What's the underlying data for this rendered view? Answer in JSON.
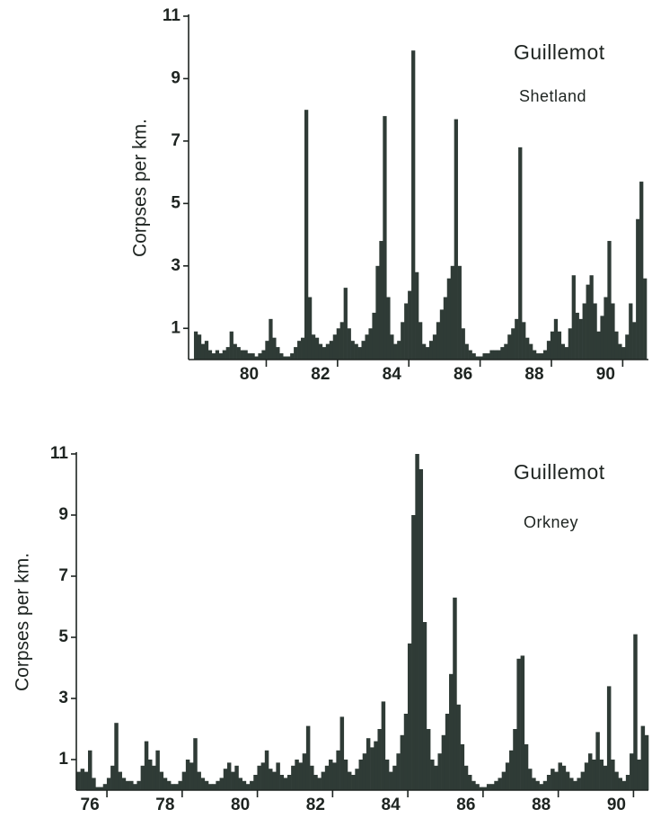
{
  "chart_data": [
    {
      "type": "bar",
      "title": "Guillemot",
      "subtitle": "Shetland",
      "y_label": "Corpses per km.",
      "color": "#2f3b36",
      "xlim": [
        78.3,
        91.2
      ],
      "ylim": [
        0,
        11
      ],
      "xticks": [
        80,
        82,
        84,
        86,
        88,
        90
      ],
      "yticks": [
        1,
        3,
        5,
        7,
        9,
        11
      ],
      "x": [
        78.5,
        78.6,
        78.7,
        78.8,
        78.9,
        79.0,
        79.1,
        79.2,
        79.3,
        79.4,
        79.5,
        79.6,
        79.7,
        79.8,
        79.9,
        80.0,
        80.1,
        80.2,
        80.3,
        80.4,
        80.5,
        80.6,
        80.7,
        80.8,
        80.9,
        81.0,
        81.1,
        81.2,
        81.3,
        81.4,
        81.5,
        81.6,
        81.7,
        81.8,
        81.9,
        82.0,
        82.1,
        82.2,
        82.3,
        82.4,
        82.5,
        82.6,
        82.7,
        82.8,
        82.9,
        83.0,
        83.1,
        83.2,
        83.3,
        83.4,
        83.5,
        83.6,
        83.7,
        83.8,
        83.9,
        84.0,
        84.1,
        84.2,
        84.3,
        84.4,
        84.5,
        84.6,
        84.7,
        84.8,
        84.9,
        85.0,
        85.1,
        85.2,
        85.3,
        85.4,
        85.5,
        85.6,
        85.7,
        85.8,
        85.9,
        86.0,
        86.1,
        86.2,
        86.3,
        86.4,
        86.5,
        86.6,
        86.7,
        86.8,
        86.9,
        87.0,
        87.1,
        87.2,
        87.3,
        87.4,
        87.5,
        87.6,
        87.7,
        87.8,
        87.9,
        88.0,
        88.1,
        88.2,
        88.3,
        88.4,
        88.5,
        88.6,
        88.7,
        88.8,
        88.9,
        89.0,
        89.1,
        89.2,
        89.3,
        89.4,
        89.5,
        89.6,
        89.7,
        89.8,
        89.9,
        90.0,
        90.1,
        90.2,
        90.3,
        90.4,
        90.5,
        90.6,
        90.7,
        90.8,
        90.9,
        91.0,
        91.1
      ],
      "values": [
        0.9,
        0.8,
        0.5,
        0.6,
        0.3,
        0.2,
        0.3,
        0.2,
        0.3,
        0.4,
        0.9,
        0.5,
        0.4,
        0.3,
        0.3,
        0.2,
        0.2,
        0.1,
        0.2,
        0.3,
        0.6,
        1.3,
        0.7,
        0.4,
        0.2,
        0.1,
        0.1,
        0.2,
        0.4,
        0.6,
        0.7,
        8.0,
        2.0,
        0.8,
        0.7,
        0.5,
        0.4,
        0.5,
        0.6,
        0.8,
        1.0,
        1.2,
        2.3,
        1.0,
        0.6,
        0.5,
        0.4,
        0.6,
        0.8,
        1.0,
        1.5,
        3.0,
        3.8,
        7.8,
        2.0,
        0.8,
        0.5,
        0.6,
        1.2,
        1.8,
        2.2,
        9.9,
        2.8,
        1.2,
        0.5,
        0.4,
        0.6,
        0.8,
        1.2,
        1.6,
        2.0,
        2.6,
        3.0,
        7.7,
        3.0,
        1.0,
        0.5,
        0.3,
        0.2,
        0.1,
        0.1,
        0.2,
        0.2,
        0.3,
        0.3,
        0.3,
        0.4,
        0.5,
        0.8,
        1.0,
        1.3,
        6.8,
        1.2,
        0.7,
        0.5,
        0.3,
        0.2,
        0.2,
        0.3,
        0.6,
        0.9,
        1.3,
        0.9,
        0.5,
        0.4,
        1.0,
        2.7,
        1.5,
        1.3,
        1.8,
        2.4,
        2.7,
        1.8,
        0.9,
        1.4,
        2.0,
        3.8,
        1.8,
        0.9,
        0.5,
        0.4,
        0.8,
        1.8,
        1.2,
        4.5,
        5.7,
        2.6
      ]
    },
    {
      "type": "bar",
      "title": "Guillemot",
      "subtitle": "Orkney",
      "y_label": "Corpses per km.",
      "color": "#2f3b36",
      "xlim": [
        75.64,
        90.85
      ],
      "ylim": [
        0,
        11
      ],
      "xticks": [
        76,
        78,
        80,
        82,
        84,
        86,
        88,
        90
      ],
      "yticks": [
        1,
        3,
        5,
        7,
        9,
        11
      ],
      "x": [
        75.7,
        75.8,
        75.9,
        76.0,
        76.1,
        76.2,
        76.3,
        76.4,
        76.5,
        76.6,
        76.7,
        76.8,
        76.9,
        77.0,
        77.1,
        77.2,
        77.3,
        77.4,
        77.5,
        77.6,
        77.7,
        77.8,
        77.9,
        78.0,
        78.1,
        78.2,
        78.3,
        78.4,
        78.5,
        78.6,
        78.7,
        78.8,
        78.9,
        79.0,
        79.1,
        79.2,
        79.3,
        79.4,
        79.5,
        79.6,
        79.7,
        79.8,
        79.9,
        80.0,
        80.1,
        80.2,
        80.3,
        80.4,
        80.5,
        80.6,
        80.7,
        80.8,
        80.9,
        81.0,
        81.1,
        81.2,
        81.3,
        81.4,
        81.5,
        81.6,
        81.7,
        81.8,
        81.9,
        82.0,
        82.1,
        82.2,
        82.3,
        82.4,
        82.5,
        82.6,
        82.7,
        82.8,
        82.9,
        83.0,
        83.1,
        83.2,
        83.3,
        83.4,
        83.5,
        83.6,
        83.7,
        83.8,
        83.9,
        84.0,
        84.1,
        84.2,
        84.3,
        84.4,
        84.5,
        84.6,
        84.7,
        84.8,
        84.9,
        85.0,
        85.1,
        85.2,
        85.3,
        85.4,
        85.5,
        85.6,
        85.7,
        85.8,
        85.9,
        86.0,
        86.1,
        86.2,
        86.3,
        86.4,
        86.5,
        86.6,
        86.7,
        86.8,
        86.9,
        87.0,
        87.1,
        87.2,
        87.3,
        87.4,
        87.5,
        87.6,
        87.7,
        87.8,
        87.9,
        88.0,
        88.1,
        88.2,
        88.3,
        88.4,
        88.5,
        88.6,
        88.7,
        88.8,
        88.9,
        89.0,
        89.1,
        89.2,
        89.3,
        89.4,
        89.5,
        89.6,
        89.7,
        89.8,
        89.9,
        90.0,
        90.1,
        90.2,
        90.3,
        90.4,
        90.5,
        90.6,
        90.7,
        90.8
      ],
      "values": [
        0.6,
        0.7,
        0.6,
        1.3,
        0.4,
        0.1,
        0.1,
        0.2,
        0.4,
        0.8,
        2.2,
        0.6,
        0.4,
        0.3,
        0.3,
        0.2,
        0.3,
        0.8,
        1.6,
        1.0,
        0.8,
        1.3,
        0.6,
        0.4,
        0.3,
        0.2,
        0.2,
        0.3,
        0.6,
        1.0,
        0.9,
        1.7,
        0.6,
        0.4,
        0.3,
        0.2,
        0.2,
        0.3,
        0.4,
        0.7,
        0.9,
        0.6,
        0.8,
        0.4,
        0.3,
        0.2,
        0.3,
        0.5,
        0.8,
        0.9,
        1.3,
        0.7,
        0.6,
        0.9,
        0.5,
        0.4,
        0.5,
        0.8,
        1.0,
        0.9,
        1.2,
        2.1,
        0.8,
        0.5,
        0.4,
        0.6,
        0.8,
        1.0,
        0.9,
        1.3,
        2.4,
        1.0,
        0.6,
        0.5,
        0.7,
        1.0,
        1.2,
        1.7,
        1.4,
        1.6,
        2.0,
        2.9,
        1.0,
        0.6,
        0.8,
        1.2,
        1.8,
        2.5,
        4.8,
        9.0,
        11.0,
        10.5,
        5.5,
        2.0,
        1.0,
        0.8,
        1.2,
        1.8,
        2.5,
        3.8,
        6.3,
        2.8,
        1.5,
        0.8,
        0.5,
        0.3,
        0.2,
        0.1,
        0.1,
        0.2,
        0.2,
        0.3,
        0.4,
        0.6,
        0.9,
        1.3,
        2.0,
        4.3,
        4.4,
        1.5,
        0.7,
        0.4,
        0.3,
        0.2,
        0.3,
        0.5,
        0.7,
        0.6,
        0.9,
        0.8,
        0.6,
        0.4,
        0.3,
        0.4,
        0.6,
        0.9,
        1.2,
        1.0,
        1.9,
        1.0,
        0.8,
        3.4,
        1.0,
        0.6,
        0.4,
        0.3,
        0.5,
        1.2,
        5.1,
        1.0,
        2.1,
        1.8
      ]
    }
  ]
}
